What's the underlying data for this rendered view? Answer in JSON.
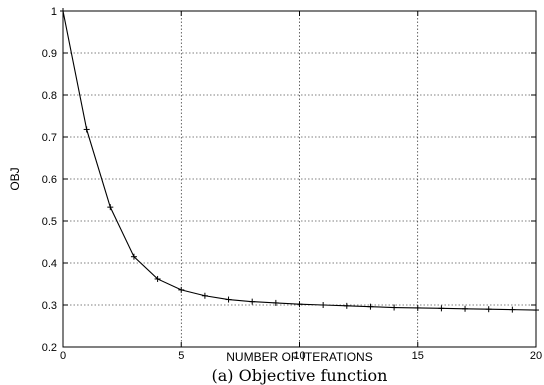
{
  "chart_data": {
    "type": "line",
    "xlabel": "NUMBER OF ITERATIONS",
    "ylabel": "OBJ",
    "caption": "(a) Objective function",
    "xlim": [
      0,
      20
    ],
    "ylim": [
      0.2,
      1
    ],
    "xticks": [
      0,
      5,
      10,
      15,
      20
    ],
    "yticks": [
      0.2,
      0.3,
      0.4,
      0.5,
      0.6,
      0.7,
      0.8,
      0.9,
      1
    ],
    "grid": true,
    "marker": "plus",
    "line_color": "#000000",
    "series": [
      {
        "x": [
          0,
          1,
          2,
          3,
          4,
          5,
          6,
          7,
          8,
          9,
          10,
          11,
          12,
          13,
          14,
          15,
          16,
          17,
          18,
          19,
          20
        ],
        "values": [
          1.0,
          0.718,
          0.533,
          0.415,
          0.362,
          0.336,
          0.322,
          0.313,
          0.308,
          0.305,
          0.302,
          0.3,
          0.298,
          0.296,
          0.294,
          0.293,
          0.292,
          0.291,
          0.29,
          0.289,
          0.288
        ]
      }
    ]
  }
}
